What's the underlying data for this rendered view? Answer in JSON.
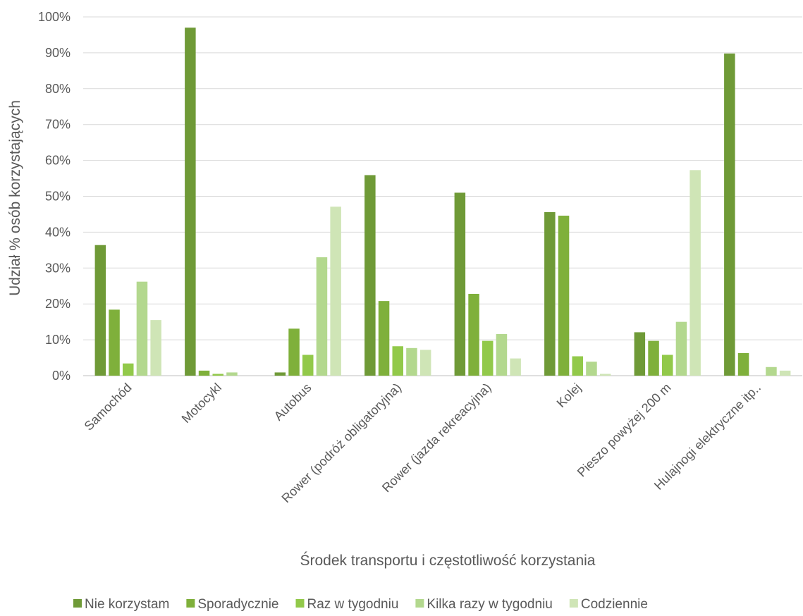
{
  "chart_data": {
    "type": "bar",
    "title": "",
    "xlabel": "Środek transportu i częstotliwość korzystania",
    "ylabel": "Udział % osób korzystających",
    "ylim": [
      0,
      100
    ],
    "y_ticks": [
      0,
      10,
      20,
      30,
      40,
      50,
      60,
      70,
      80,
      90,
      100
    ],
    "y_tick_labels": [
      "0%",
      "10%",
      "20%",
      "30%",
      "40%",
      "50%",
      "60%",
      "70%",
      "80%",
      "90%",
      "100%"
    ],
    "y_unit": "%",
    "grid": true,
    "legend_position": "bottom",
    "categories": [
      "Samochód",
      "Motocykl",
      "Autobus",
      "Rower (podróż obligatoryjna)",
      "Rower (jazda rekreacyjna)",
      "Kolej",
      "Pieszo powyżej 200 m",
      "Hulajnogi elektryczne itp.."
    ],
    "series": [
      {
        "name": "Nie korzystam",
        "color": "#6f9a37",
        "values": [
          36.4,
          97.0,
          0.9,
          55.9,
          51.0,
          45.6,
          12.1,
          89.8
        ]
      },
      {
        "name": "Sporadycznie",
        "color": "#7fb03b",
        "values": [
          18.4,
          1.4,
          13.1,
          20.8,
          22.8,
          44.6,
          9.7,
          6.3
        ]
      },
      {
        "name": "Raz w tygodniu",
        "color": "#92c94a",
        "values": [
          3.4,
          0.5,
          5.8,
          8.2,
          9.7,
          5.4,
          5.8,
          0.0
        ]
      },
      {
        "name": "Kilka razy w tygodniu",
        "color": "#b3d88e",
        "values": [
          26.2,
          0.9,
          33.0,
          7.7,
          11.6,
          3.9,
          15.0,
          2.4
        ]
      },
      {
        "name": "Codziennie",
        "color": "#cfe5b6",
        "values": [
          15.5,
          0.0,
          47.1,
          7.2,
          4.8,
          0.5,
          57.3,
          1.4
        ]
      }
    ]
  }
}
